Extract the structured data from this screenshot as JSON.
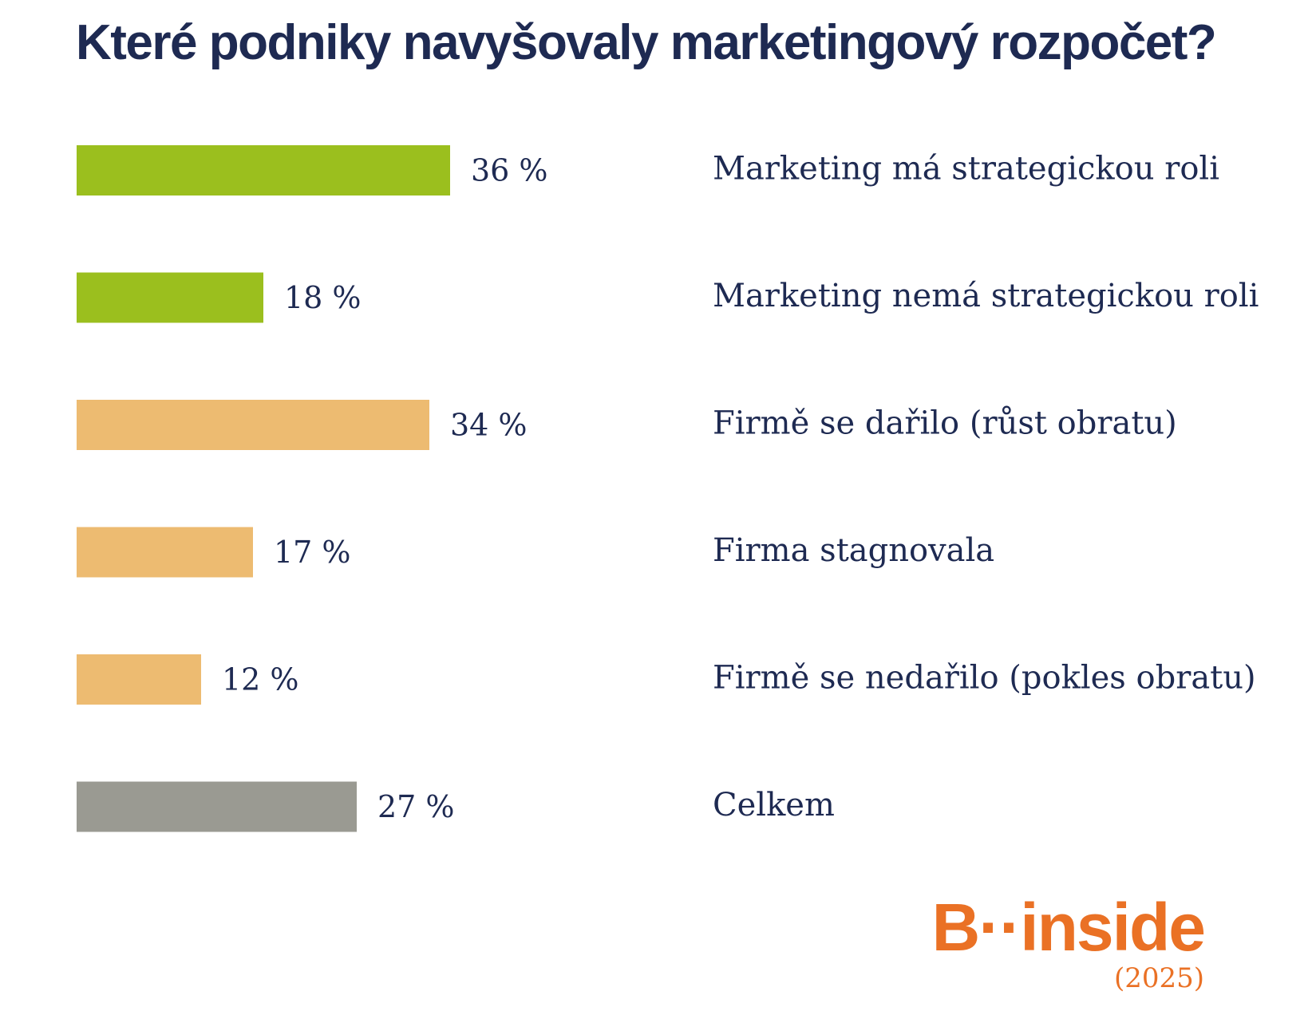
{
  "chart_data": {
    "type": "bar",
    "orientation": "horizontal",
    "title": "Které podniky navyšovaly marketingový rozpočet?",
    "categories": [
      "Marketing má strategickou roli",
      "Marketing nemá strategickou roli",
      "Firmě se dařilo (růst obratu)",
      "Firma stagnovala",
      "Firmě se nedařilo (pokles obratu)",
      "Celkem"
    ],
    "values": [
      36,
      18,
      34,
      17,
      12,
      27
    ],
    "value_labels": [
      "36 %",
      "18 %",
      "34 %",
      "17 %",
      "12 %",
      "27 %"
    ],
    "bar_colors": [
      "#9bbf1e",
      "#9bbf1e",
      "#edbb71",
      "#edbb71",
      "#edbb71",
      "#9a9a92"
    ],
    "unit": "%",
    "xlim": [
      0,
      100
    ],
    "grid": false,
    "legend": "none"
  },
  "colors": {
    "title": "#1e2a52",
    "text": "#1e2a52",
    "logo": "#ea7125"
  },
  "logo": {
    "text": "B··inside",
    "year": "(2025)"
  }
}
